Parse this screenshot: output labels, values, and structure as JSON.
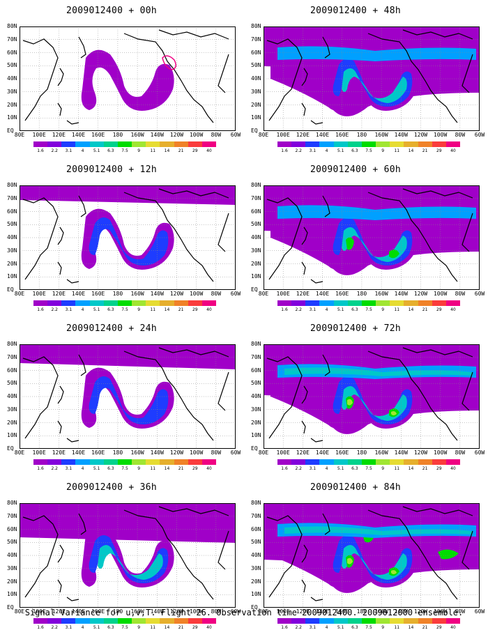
{
  "panels": [
    {
      "id": "p00",
      "title": "2009012400 + 00h",
      "level": 0
    },
    {
      "id": "p48",
      "title": "2009012400 + 48h",
      "level": 4
    },
    {
      "id": "p12",
      "title": "2009012400 + 12h",
      "level": 1
    },
    {
      "id": "p60",
      "title": "2009012400 + 60h",
      "level": 5
    },
    {
      "id": "p24",
      "title": "2009012400 + 24h",
      "level": 2
    },
    {
      "id": "p72",
      "title": "2009012400 + 72h",
      "level": 6
    },
    {
      "id": "p36",
      "title": "2009012400 + 36h",
      "level": 3
    },
    {
      "id": "p84",
      "title": "2009012400 + 84h",
      "level": 7
    }
  ],
  "lon_labels": [
    "80E",
    "100E",
    "120E",
    "140E",
    "160E",
    "180",
    "160W",
    "140W",
    "120W",
    "100W",
    "80W",
    "60W"
  ],
  "lat_labels": [
    "80N",
    "70N",
    "60N",
    "50N",
    "40N",
    "30N",
    "20N",
    "10N",
    "EQ"
  ],
  "colorbar": {
    "labels": [
      "1.6",
      "2.2",
      "3.1",
      "4",
      "5.1",
      "6.3",
      "7.5",
      "9",
      "11",
      "14",
      "21",
      "29",
      "40"
    ],
    "colors": [
      "#a000c8",
      "#8200dc",
      "#1e3cff",
      "#00a0ff",
      "#00c8c8",
      "#00d28c",
      "#00dc00",
      "#a0e632",
      "#e6dc32",
      "#e6af2d",
      "#f08228",
      "#fa3c3c",
      "#f00082"
    ]
  },
  "caption": "Signal Variance for u,v,T. Flight 26. Observation time 2009012400. 2009012000 ensemble."
}
